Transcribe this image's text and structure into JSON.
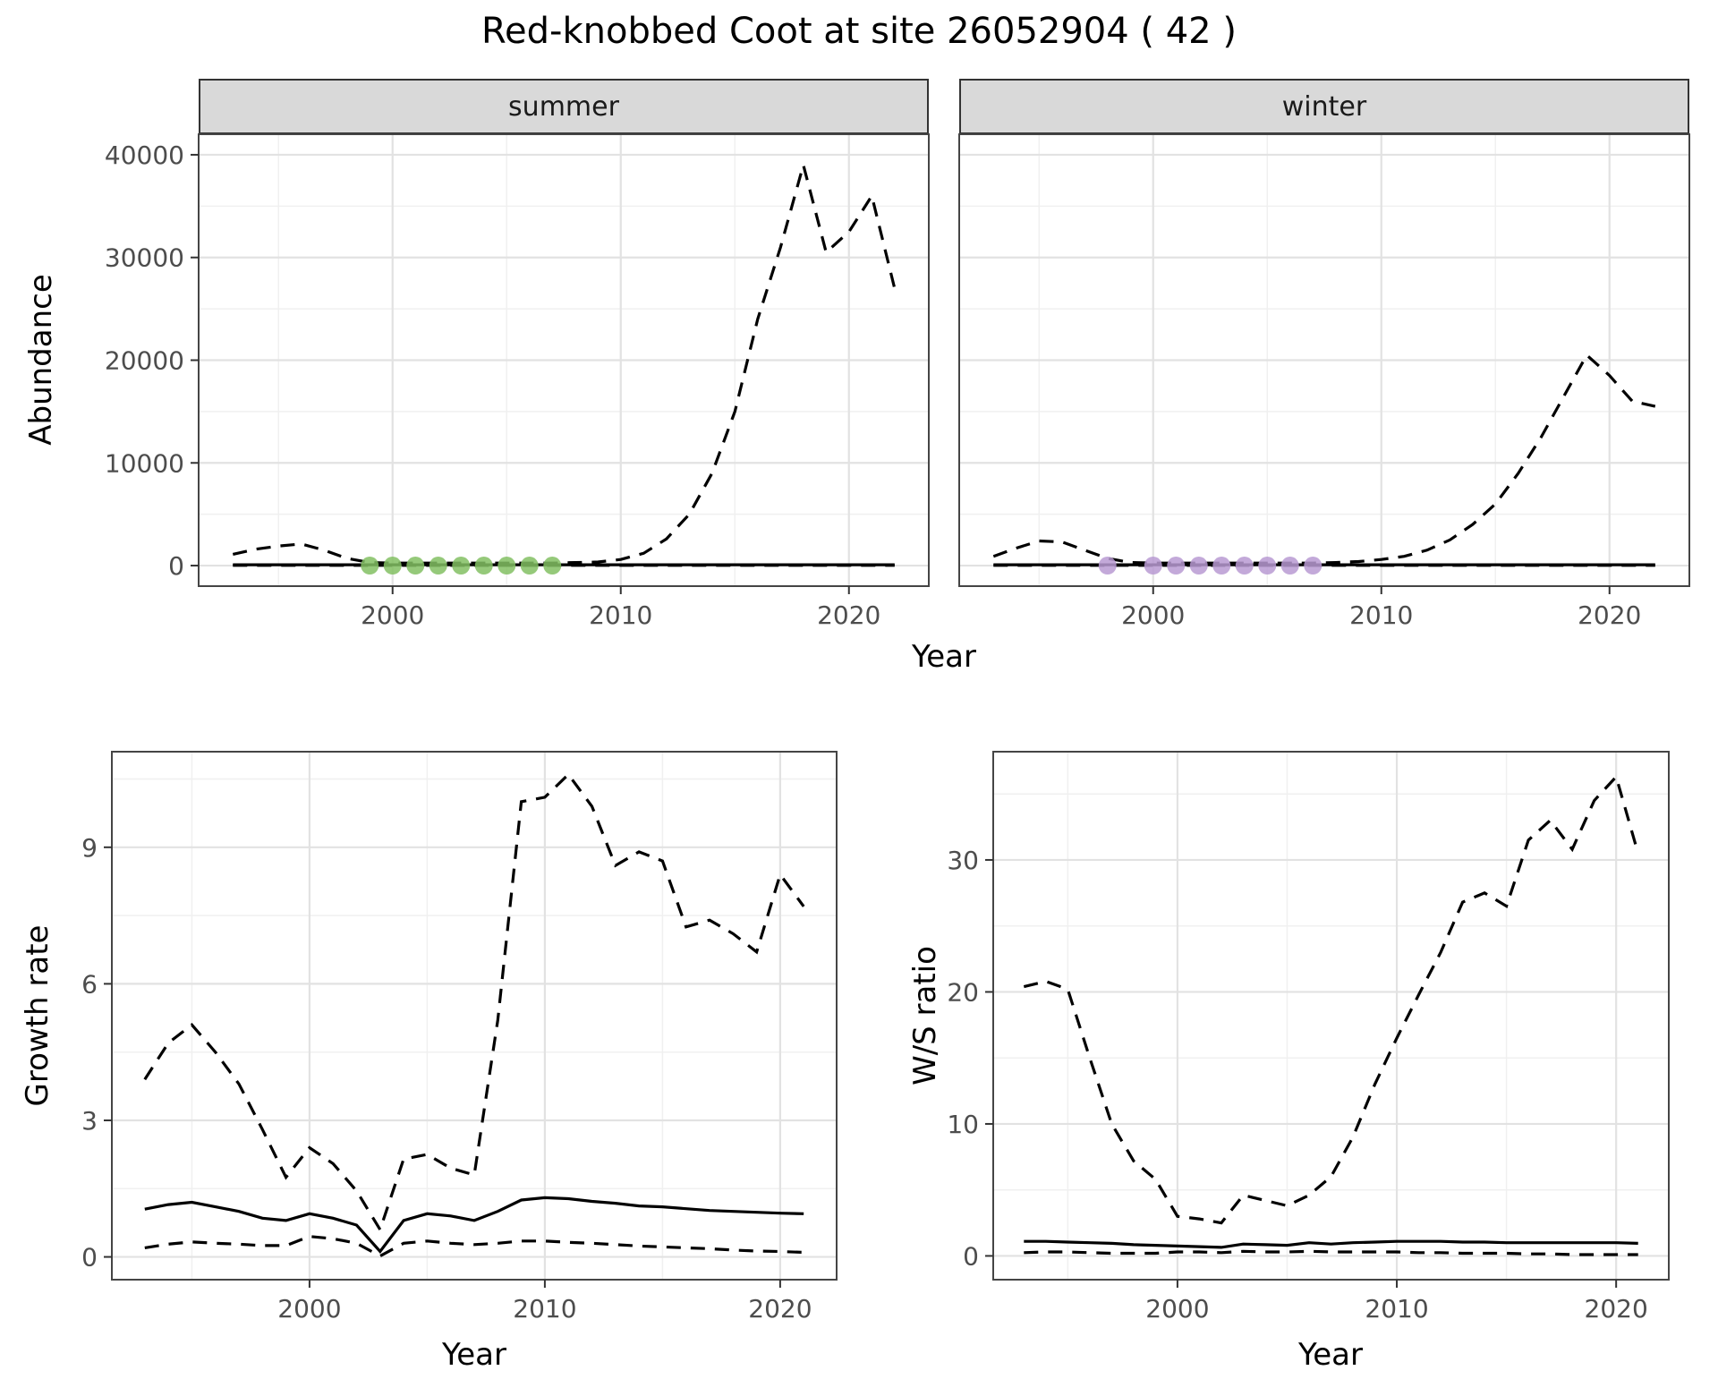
{
  "title": "Red-knobbed Coot at site 26052904 ( 42 )",
  "colors": {
    "line": "#000000",
    "grid_major": "#e2e2e2",
    "grid_minor": "#f0f0f0",
    "panel_border": "#454545",
    "strip_bg": "#d9d9d9",
    "tick_label": "#4d4d4d",
    "summer_points": "#82c063",
    "winter_points": "#b89ad2"
  },
  "chart_data": [
    {
      "id": "abundance_summer",
      "type": "line",
      "facet": "summer",
      "xlabel": "Year",
      "ylabel": "Abundance",
      "xlim": [
        1991.5,
        2023.5
      ],
      "ylim": [
        -2000,
        42000
      ],
      "xticks": [
        2000,
        2010,
        2020
      ],
      "yticks": [
        0,
        10000,
        20000,
        30000,
        40000
      ],
      "show_y_labels": true,
      "x": [
        1993,
        1994,
        1995,
        1996,
        1997,
        1998,
        1999,
        2000,
        2001,
        2002,
        2003,
        2004,
        2005,
        2006,
        2007,
        2008,
        2009,
        2010,
        2011,
        2012,
        2013,
        2014,
        2015,
        2016,
        2017,
        2018,
        2019,
        2020,
        2021,
        2022
      ],
      "series": [
        {
          "name": "upper-ci",
          "style": "dashed",
          "values": [
            1100,
            1600,
            1900,
            2100,
            1500,
            700,
            300,
            250,
            250,
            250,
            250,
            250,
            250,
            250,
            250,
            300,
            350,
            600,
            1200,
            2600,
            5000,
            9000,
            15000,
            24000,
            31000,
            39000,
            30500,
            32500,
            36000,
            27000
          ]
        },
        {
          "name": "estimate",
          "style": "solid",
          "values": [
            80,
            80,
            80,
            80,
            80,
            80,
            80,
            80,
            80,
            80,
            80,
            80,
            80,
            80,
            80,
            80,
            80,
            80,
            80,
            80,
            80,
            80,
            80,
            80,
            80,
            80,
            80,
            80,
            80,
            80
          ]
        },
        {
          "name": "lower-ci",
          "style": "dashed",
          "values": [
            20,
            20,
            20,
            20,
            20,
            20,
            20,
            20,
            20,
            20,
            20,
            20,
            20,
            20,
            20,
            20,
            20,
            20,
            20,
            20,
            20,
            20,
            20,
            20,
            20,
            20,
            20,
            20,
            20,
            20
          ]
        }
      ],
      "points": {
        "name": "observed-counts-summer",
        "color": "#82c063",
        "x": [
          1999,
          2000,
          2001,
          2002,
          2003,
          2004,
          2005,
          2006,
          2007
        ],
        "y": [
          0,
          0,
          0,
          0,
          0,
          0,
          0,
          0,
          0
        ]
      }
    },
    {
      "id": "abundance_winter",
      "type": "line",
      "facet": "winter",
      "xlabel": "Year",
      "ylabel": "Abundance",
      "xlim": [
        1991.5,
        2023.5
      ],
      "ylim": [
        -2000,
        42000
      ],
      "xticks": [
        2000,
        2010,
        2020
      ],
      "yticks": [
        0,
        10000,
        20000,
        30000,
        40000
      ],
      "show_y_labels": false,
      "x": [
        1993,
        1994,
        1995,
        1996,
        1997,
        1998,
        1999,
        2000,
        2001,
        2002,
        2003,
        2004,
        2005,
        2006,
        2007,
        2008,
        2009,
        2010,
        2011,
        2012,
        2013,
        2014,
        2015,
        2016,
        2017,
        2018,
        2019,
        2020,
        2021,
        2022
      ],
      "series": [
        {
          "name": "upper-ci",
          "style": "dashed",
          "values": [
            900,
            1700,
            2400,
            2300,
            1500,
            700,
            300,
            250,
            250,
            250,
            250,
            250,
            250,
            250,
            250,
            300,
            400,
            600,
            900,
            1500,
            2500,
            4000,
            6000,
            9000,
            12500,
            16500,
            20500,
            18500,
            16000,
            15500
          ]
        },
        {
          "name": "estimate",
          "style": "solid",
          "values": [
            80,
            80,
            80,
            80,
            80,
            80,
            80,
            80,
            80,
            80,
            80,
            80,
            80,
            80,
            80,
            80,
            80,
            80,
            80,
            80,
            80,
            80,
            80,
            80,
            80,
            80,
            80,
            80,
            80,
            80
          ]
        },
        {
          "name": "lower-ci",
          "style": "dashed",
          "values": [
            20,
            20,
            20,
            20,
            20,
            20,
            20,
            20,
            20,
            20,
            20,
            20,
            20,
            20,
            20,
            20,
            20,
            20,
            20,
            20,
            20,
            20,
            20,
            20,
            20,
            20,
            20,
            20,
            20,
            20
          ]
        }
      ],
      "points": {
        "name": "observed-counts-winter",
        "color": "#b89ad2",
        "x": [
          1998,
          2000,
          2001,
          2002,
          2003,
          2004,
          2005,
          2006,
          2007
        ],
        "y": [
          0,
          0,
          0,
          0,
          0,
          0,
          0,
          0,
          0
        ]
      }
    },
    {
      "id": "growth_rate",
      "type": "line",
      "facet": "",
      "xlabel": "Year",
      "ylabel": "Growth rate",
      "xlim": [
        1991.6,
        2022.4
      ],
      "ylim": [
        -0.5,
        11.1
      ],
      "xticks": [
        2000,
        2010,
        2020
      ],
      "yticks": [
        0,
        3,
        6,
        9
      ],
      "show_y_labels": true,
      "x": [
        1993,
        1994,
        1995,
        1996,
        1997,
        1998,
        1999,
        2000,
        2001,
        2002,
        2003,
        2004,
        2005,
        2006,
        2007,
        2008,
        2009,
        2010,
        2011,
        2012,
        2013,
        2014,
        2015,
        2016,
        2017,
        2018,
        2019,
        2020,
        2021
      ],
      "series": [
        {
          "name": "upper-ci",
          "style": "dashed",
          "values": [
            3.9,
            4.7,
            5.1,
            4.5,
            3.8,
            2.8,
            1.75,
            2.4,
            2.05,
            1.45,
            0.6,
            2.15,
            2.25,
            1.95,
            1.8,
            5.2,
            10.0,
            10.1,
            10.6,
            9.9,
            8.6,
            8.9,
            8.7,
            7.25,
            7.4,
            7.1,
            6.7,
            8.4,
            7.7
          ]
        },
        {
          "name": "estimate",
          "style": "solid",
          "values": [
            1.05,
            1.15,
            1.2,
            1.1,
            1.0,
            0.85,
            0.8,
            0.95,
            0.85,
            0.7,
            0.12,
            0.8,
            0.95,
            0.9,
            0.8,
            1.0,
            1.25,
            1.3,
            1.28,
            1.22,
            1.18,
            1.12,
            1.1,
            1.06,
            1.02,
            1.0,
            0.98,
            0.96,
            0.95
          ]
        },
        {
          "name": "lower-ci",
          "style": "dashed",
          "values": [
            0.2,
            0.28,
            0.33,
            0.3,
            0.28,
            0.25,
            0.25,
            0.45,
            0.4,
            0.3,
            0.02,
            0.3,
            0.35,
            0.3,
            0.27,
            0.3,
            0.35,
            0.35,
            0.32,
            0.3,
            0.27,
            0.24,
            0.22,
            0.2,
            0.18,
            0.15,
            0.13,
            0.12,
            0.1
          ]
        }
      ]
    },
    {
      "id": "ws_ratio",
      "type": "line",
      "facet": "",
      "xlabel": "Year",
      "ylabel": "W/S ratio",
      "xlim": [
        1991.6,
        2022.4
      ],
      "ylim": [
        -1.8,
        38.2
      ],
      "xticks": [
        2000,
        2010,
        2020
      ],
      "yticks": [
        0,
        10,
        20,
        30
      ],
      "show_y_labels": true,
      "x": [
        1993,
        1994,
        1995,
        1996,
        1997,
        1998,
        1999,
        2000,
        2001,
        2002,
        2003,
        2004,
        2005,
        2006,
        2007,
        2008,
        2009,
        2010,
        2011,
        2012,
        2013,
        2014,
        2015,
        2016,
        2017,
        2018,
        2019,
        2020,
        2021
      ],
      "series": [
        {
          "name": "upper-ci",
          "style": "dashed",
          "values": [
            20.4,
            20.8,
            20.2,
            15.0,
            10.0,
            7.2,
            5.8,
            3.0,
            2.8,
            2.5,
            4.6,
            4.2,
            3.8,
            4.6,
            6.0,
            9.0,
            13.0,
            16.5,
            19.8,
            23.0,
            26.8,
            27.5,
            26.5,
            31.5,
            33.0,
            30.8,
            34.5,
            36.3,
            30.5
          ]
        },
        {
          "name": "estimate",
          "style": "solid",
          "values": [
            1.1,
            1.1,
            1.05,
            1.0,
            0.95,
            0.85,
            0.8,
            0.75,
            0.7,
            0.65,
            0.9,
            0.85,
            0.8,
            1.0,
            0.9,
            1.0,
            1.05,
            1.1,
            1.1,
            1.1,
            1.05,
            1.05,
            1.0,
            1.0,
            1.0,
            1.0,
            1.0,
            1.0,
            0.95
          ]
        },
        {
          "name": "lower-ci",
          "style": "dashed",
          "values": [
            0.25,
            0.3,
            0.3,
            0.25,
            0.2,
            0.2,
            0.2,
            0.3,
            0.3,
            0.25,
            0.35,
            0.3,
            0.3,
            0.35,
            0.3,
            0.3,
            0.3,
            0.3,
            0.25,
            0.25,
            0.2,
            0.2,
            0.2,
            0.15,
            0.15,
            0.1,
            0.1,
            0.1,
            0.1
          ]
        }
      ]
    }
  ]
}
